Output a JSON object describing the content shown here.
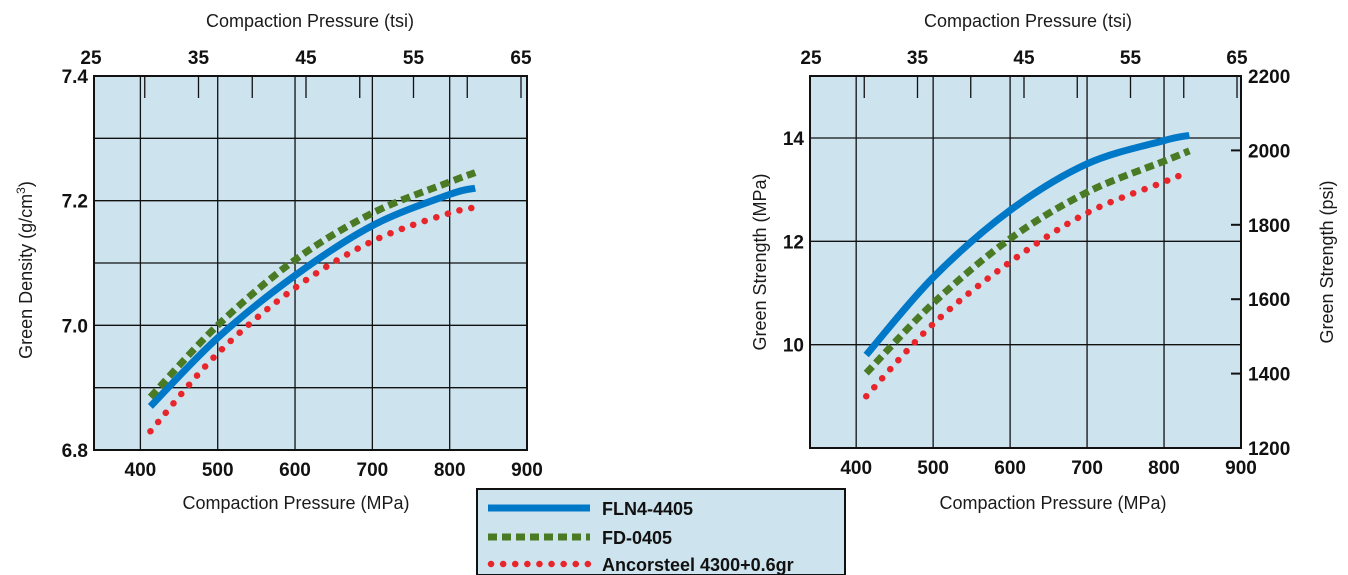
{
  "colors": {
    "plot_bg": "#cde3ee",
    "grid": "#111111",
    "FLN4-4405": "#0078c8",
    "FD-0405": "#4a7a23",
    "Ancorsteel 4300+0.6gr": "#e8252a"
  },
  "legend": {
    "placement": "bottom-center",
    "items": [
      {
        "label": "FLN4-4405",
        "style": "solid"
      },
      {
        "label": "FD-0405",
        "style": "dashed"
      },
      {
        "label": "Ancorsteel 4300+0.6gr",
        "style": "dotted"
      }
    ]
  },
  "chart_data": [
    {
      "type": "line",
      "xlabel": "Compaction Pressure (MPa)",
      "x2label": "Compaction Pressure (tsi)",
      "ylabel": "Green Density (g/cm",
      "ylabel_sup": "3",
      "ylabel_end": ")",
      "xlim": [
        340,
        900
      ],
      "x_ticks": [
        "400",
        "500",
        "600",
        "700",
        "800",
        "900"
      ],
      "x2lim": [
        25,
        65
      ],
      "x2_ticks": [
        "25",
        "35",
        "45",
        "55",
        "65"
      ],
      "ylim": [
        6.8,
        7.4
      ],
      "y_ticks": [
        "6.8",
        "7.0",
        "7.2",
        "7.4"
      ],
      "grid": true,
      "series": [
        {
          "name": "FLN4-4405",
          "x": [
            413,
            500,
            600,
            700,
            800,
            833
          ],
          "y": [
            6.87,
            6.98,
            7.08,
            7.16,
            7.21,
            7.22
          ]
        },
        {
          "name": "FD-0405",
          "x": [
            413,
            500,
            600,
            700,
            800,
            833
          ],
          "y": [
            6.885,
            7.0,
            7.105,
            7.18,
            7.23,
            7.245
          ]
        },
        {
          "name": "Ancorsteel 4300+0.6gr",
          "x": [
            413,
            500,
            600,
            700,
            800,
            840
          ],
          "y": [
            6.83,
            6.955,
            7.06,
            7.135,
            7.18,
            7.19
          ]
        }
      ]
    },
    {
      "type": "line",
      "xlabel": "Compaction Pressure (MPa)",
      "x2label": "Compaction Pressure (tsi)",
      "ylabel": "Green Strength  (MPa)",
      "y2label": "Green Strength  (psi)",
      "xlim": [
        340,
        900
      ],
      "x_ticks": [
        "400",
        "500",
        "600",
        "700",
        "800",
        "900"
      ],
      "x2lim": [
        25,
        65
      ],
      "x2_ticks": [
        "25",
        "35",
        "45",
        "55",
        "65"
      ],
      "ylim": [
        8,
        15.2
      ],
      "y_ticks": [
        "10",
        "12",
        "14"
      ],
      "y2lim": [
        1200,
        2200
      ],
      "y2_ticks": [
        "1200",
        "1400",
        "1600",
        "1800",
        "2000",
        "2200"
      ],
      "grid": true,
      "series": [
        {
          "name": "FLN4-4405",
          "x": [
            413,
            500,
            600,
            700,
            800,
            833
          ],
          "y": [
            9.8,
            11.3,
            12.6,
            13.5,
            13.95,
            14.05
          ]
        },
        {
          "name": "FD-0405",
          "x": [
            413,
            500,
            600,
            700,
            800,
            833
          ],
          "y": [
            9.45,
            10.8,
            12.05,
            12.95,
            13.55,
            13.75
          ]
        },
        {
          "name": "Ancorsteel 4300+0.6gr",
          "x": [
            413,
            500,
            600,
            700,
            800,
            833
          ],
          "y": [
            9.0,
            10.4,
            11.6,
            12.55,
            13.15,
            13.35
          ]
        }
      ]
    }
  ]
}
